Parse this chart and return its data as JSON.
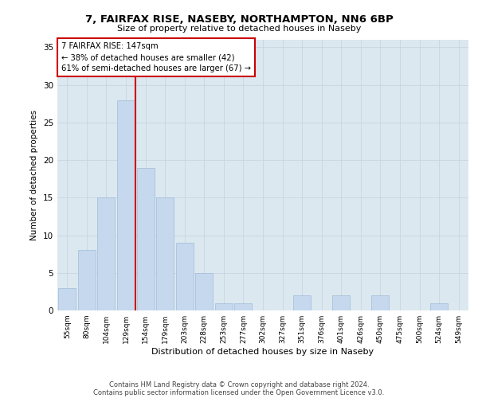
{
  "title1": "7, FAIRFAX RISE, NASEBY, NORTHAMPTON, NN6 6BP",
  "title2": "Size of property relative to detached houses in Naseby",
  "xlabel": "Distribution of detached houses by size in Naseby",
  "ylabel": "Number of detached properties",
  "categories": [
    "55sqm",
    "80sqm",
    "104sqm",
    "129sqm",
    "154sqm",
    "179sqm",
    "203sqm",
    "228sqm",
    "253sqm",
    "277sqm",
    "302sqm",
    "327sqm",
    "351sqm",
    "376sqm",
    "401sqm",
    "426sqm",
    "450sqm",
    "475sqm",
    "500sqm",
    "524sqm",
    "549sqm"
  ],
  "values": [
    3,
    8,
    15,
    28,
    19,
    15,
    9,
    5,
    1,
    1,
    0,
    0,
    2,
    0,
    2,
    0,
    2,
    0,
    0,
    1,
    0
  ],
  "bar_color": "#c5d8ed",
  "bar_edge_color": "#a0bcd8",
  "grid_color": "#c8d4e0",
  "bg_color": "#dce8f0",
  "vline_x": 3.5,
  "vline_color": "#cc0000",
  "annotation_line1": "7 FAIRFAX RISE: 147sqm",
  "annotation_line2": "← 38% of detached houses are smaller (42)",
  "annotation_line3": "61% of semi-detached houses are larger (67) →",
  "annotation_box_color": "#ffffff",
  "annotation_border_color": "#cc0000",
  "ylim": [
    0,
    36
  ],
  "yticks": [
    0,
    5,
    10,
    15,
    20,
    25,
    30,
    35
  ],
  "footer1": "Contains HM Land Registry data © Crown copyright and database right 2024.",
  "footer2": "Contains public sector information licensed under the Open Government Licence v3.0."
}
